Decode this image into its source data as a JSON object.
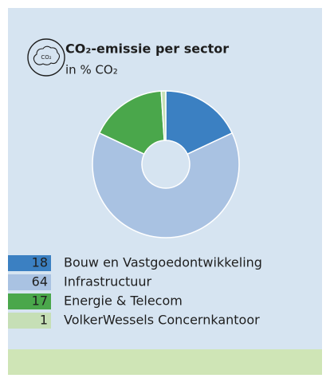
{
  "chart_data": {
    "type": "pie",
    "title": "CO₂-emissie per sector",
    "subtitle": "in % CO₂",
    "icon_label": "CO₂",
    "categories": [
      "Bouw en Vastgoedontwikkeling",
      "Infrastructuur",
      "Energie & Telecom",
      "VolkerWessels Concernkantoor"
    ],
    "values": [
      18,
      64,
      17,
      1
    ],
    "colors": [
      "#3b80c2",
      "#a9c2e2",
      "#4aa74b",
      "#c6dfb6"
    ],
    "donut": true
  }
}
